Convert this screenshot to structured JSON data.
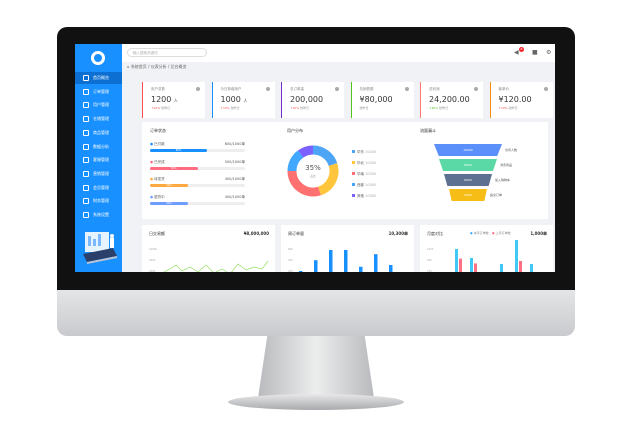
{
  "sidebar": {
    "items": [
      "首页概览",
      "订单管理",
      "用户管理",
      "仓储管理",
      "商品管理",
      "数据分析",
      "客服管理",
      "营销管理",
      "会员管理",
      "财务管理",
      "系统设置"
    ],
    "active": 0
  },
  "topbar": {
    "search_placeholder": "输入搜索关键词",
    "notification_count": "8"
  },
  "breadcrumb": "系统首页 / 仪表分析 / 后台概览",
  "cards": [
    {
      "title": "用户总数",
      "value": "1200",
      "unit": "人",
      "delta": "↑10%",
      "note": "较昨日",
      "color": "#ff4d4f",
      "delta_color": "#ff4d4f"
    },
    {
      "title": "今日新增用户",
      "value": "1000",
      "unit": "人",
      "delta": "↑10%",
      "note": "较昨日",
      "color": "#1890ff",
      "delta_color": "#ff4d4f"
    },
    {
      "title": "总订单量",
      "value": "200,000",
      "unit": "",
      "delta": "↑10%",
      "note": "较昨日",
      "color": "#722ed1",
      "delta_color": "#ff4d4f"
    },
    {
      "title": "总销售额",
      "value": "¥80,000",
      "unit": "",
      "delta": "",
      "note": "较昨日",
      "color": "#52c41a",
      "delta_color": "#52c41a"
    },
    {
      "title": "总利润",
      "value": "24,200.00",
      "unit": "",
      "delta": "↓20%",
      "note": "较昨日",
      "color": "#ff7875",
      "delta_color": "#52c41a"
    },
    {
      "title": "客单价",
      "value": "¥120.00",
      "unit": "",
      "delta": "↑10%",
      "note": "较昨日",
      "color": "#fa8c16",
      "delta_color": "#ff4d4f"
    }
  ],
  "order_status": {
    "title": "订单状态",
    "rows": [
      {
        "label": "已付款",
        "value": "600/1000单",
        "percent": 60,
        "color": "#1890ff"
      },
      {
        "label": "已完成",
        "value": "500/1000单",
        "percent": 50,
        "color": "#ff6b81"
      },
      {
        "label": "待发货",
        "value": "400/1000单",
        "percent": 40,
        "color": "#ffa940"
      },
      {
        "label": "退货中",
        "value": "400/1000单",
        "percent": 40,
        "color": "#6e9cff"
      }
    ]
  },
  "user_dist": {
    "title": "用户分布",
    "center_value": "35%",
    "center_label": "占比",
    "legend": [
      {
        "label": "华东",
        "value": "10000",
        "color": "#4ea4f5",
        "share": 20
      },
      {
        "label": "华北",
        "value": "10000",
        "color": "#ffc53d",
        "share": 25
      },
      {
        "label": "华南",
        "value": "10000",
        "color": "#ff7070",
        "share": 30
      },
      {
        "label": "西部",
        "value": "10000",
        "color": "#40a9ff",
        "share": 15
      },
      {
        "label": "其他",
        "value": "10000",
        "color": "#7b61ff",
        "share": 10
      }
    ]
  },
  "funnel": {
    "title": "流量漏斗",
    "levels": [
      {
        "value": "10000",
        "label": "访问人数",
        "color": "#5b8ff9"
      },
      {
        "value": "8000",
        "label": "浏览商品",
        "color": "#5ad8a6"
      },
      {
        "value": "6000",
        "label": "加入购物车",
        "color": "#5d7092"
      },
      {
        "value": "4000",
        "label": "提交订单",
        "color": "#f6bd16"
      }
    ]
  },
  "bottom": [
    {
      "title": "日交易额",
      "total": "¥8,000,000",
      "yticks": [
        "10000",
        "5000",
        "1000"
      ]
    },
    {
      "title": "周订单量",
      "total": "10,300单",
      "yticks": [
        "600",
        "400",
        "200"
      ]
    },
    {
      "title": "月度对比",
      "total": "1,000单",
      "legend": [
        "本月订单数",
        "上月订单数"
      ],
      "yticks": [
        "1000",
        "500",
        "100"
      ]
    }
  ]
}
